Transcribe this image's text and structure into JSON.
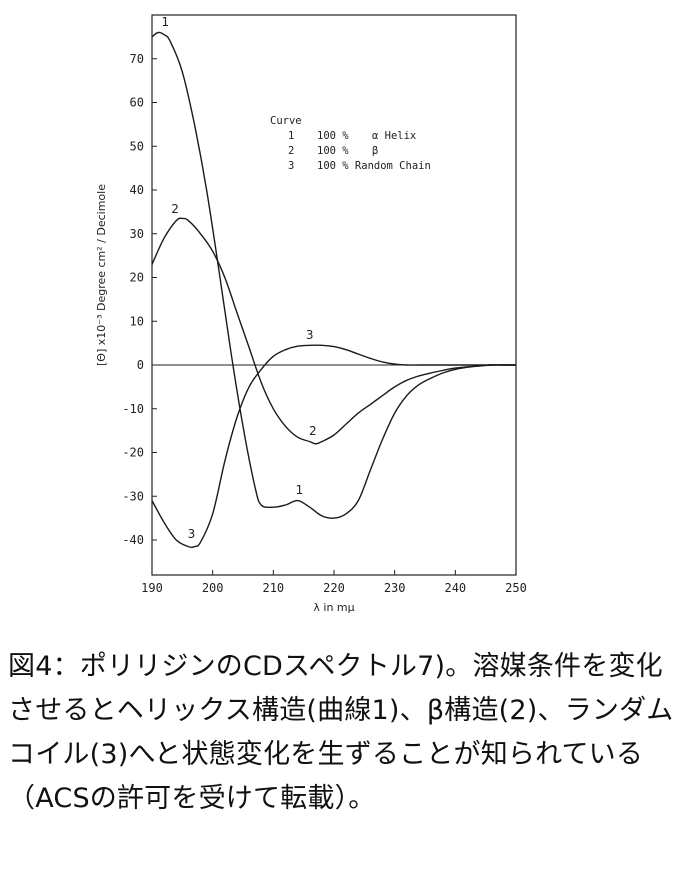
{
  "chart_data": {
    "type": "line",
    "title": "",
    "xlabel": "λ in mμ",
    "ylabel": "[Θ] x10⁻³ Degree cm² / Decimole",
    "xlim": [
      190,
      250
    ],
    "ylim": [
      -48,
      80
    ],
    "x_ticks": [
      190,
      200,
      210,
      220,
      230,
      240,
      250
    ],
    "y_ticks": [
      70,
      60,
      50,
      40,
      30,
      20,
      10,
      0,
      -10,
      -20,
      -30,
      -40
    ],
    "grid": false,
    "zero_line": true,
    "legend": {
      "title": "Curve",
      "placement": "top-right",
      "entries": [
        {
          "num": "1",
          "pct": "100 %",
          "label": "α Helix"
        },
        {
          "num": "2",
          "pct": "100 %",
          "label": "β"
        },
        {
          "num": "3",
          "pct": "100 % Random Chain",
          "label": ""
        }
      ]
    },
    "series": [
      {
        "name": "1",
        "x": [
          190,
          191,
          192,
          193,
          195,
          197,
          199,
          201,
          203,
          205,
          207,
          208,
          210,
          212,
          214,
          216,
          218,
          220,
          222,
          224,
          226,
          228,
          230,
          232,
          234,
          236,
          238,
          240,
          242,
          244,
          246,
          248,
          250
        ],
        "y": [
          75,
          76,
          75.5,
          74,
          67,
          55,
          40,
          22,
          3,
          -14,
          -28,
          -32,
          -32.5,
          -32,
          -31,
          -32.5,
          -34.5,
          -35,
          -34,
          -31,
          -24,
          -17,
          -11,
          -7,
          -4.5,
          -3,
          -1.8,
          -1,
          -0.5,
          -0.2,
          0,
          0,
          0
        ]
      },
      {
        "name": "2",
        "x": [
          190,
          192,
          194,
          195,
          196,
          198,
          200,
          202,
          204,
          206,
          208,
          210,
          212,
          214,
          216,
          217,
          218,
          220,
          222,
          224,
          226,
          228,
          230,
          232,
          234,
          236,
          238,
          240,
          242,
          244,
          246,
          248,
          250
        ],
        "y": [
          23,
          29,
          33,
          33.5,
          33,
          30,
          26,
          20,
          12,
          4,
          -4,
          -10,
          -14,
          -16.5,
          -17.5,
          -18,
          -17.5,
          -16,
          -13.5,
          -11,
          -9,
          -7,
          -5,
          -3.5,
          -2.5,
          -1.8,
          -1.2,
          -0.7,
          -0.4,
          -0.2,
          0,
          0,
          0
        ]
      },
      {
        "name": "3",
        "x": [
          190,
          192,
          194,
          196,
          197,
          198,
          200,
          202,
          204,
          206,
          208,
          210,
          212,
          214,
          216,
          218,
          220,
          222,
          224,
          226,
          228,
          230,
          232,
          234,
          236,
          238,
          240,
          242,
          244,
          246,
          248,
          250
        ],
        "y": [
          -31,
          -36,
          -40,
          -41.5,
          -41.5,
          -40.5,
          -34,
          -22,
          -12,
          -5,
          -1,
          2,
          3.5,
          4.3,
          4.5,
          4.5,
          4.2,
          3.5,
          2.5,
          1.5,
          0.7,
          0.2,
          0,
          0,
          0,
          0,
          0,
          0,
          0,
          0,
          0,
          0
        ]
      }
    ],
    "curve_labels": [
      {
        "text": "1",
        "x": 192.2,
        "y": 77.5
      },
      {
        "text": "2",
        "x": 193.8,
        "y": 34.8
      },
      {
        "text": "3",
        "x": 196.5,
        "y": -39.5
      },
      {
        "text": "1",
        "x": 214.3,
        "y": -29.5
      },
      {
        "text": "2",
        "x": 216.5,
        "y": -16
      },
      {
        "text": "3",
        "x": 216,
        "y": 6
      }
    ]
  },
  "caption": "図4：ポリリジンのCDスペクトル7)。溶媒条件を変化させるとヘリックス構造(曲線1)、β構造(2)、ランダムコイル(3)へと状態変化を生ずることが知られている（ACSの許可を受けて転載）。"
}
